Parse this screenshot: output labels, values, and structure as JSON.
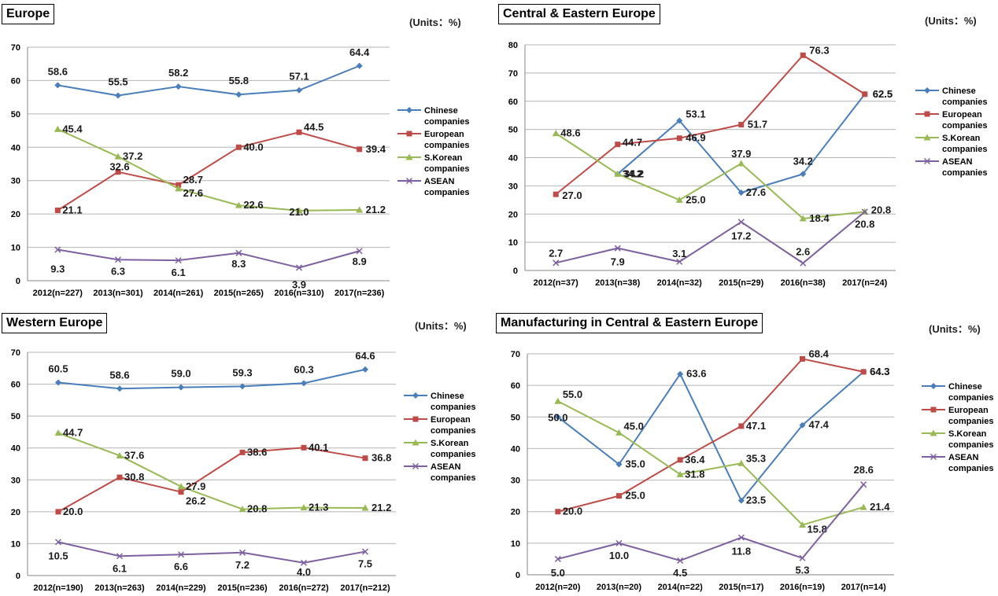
{
  "units_label": "(Units：%)",
  "colors": {
    "chinese": "#4a7ebb",
    "european": "#be4b48",
    "skorean": "#98b954",
    "asean": "#7d60a0",
    "grid": "#b4b4b4"
  },
  "chart_data": [
    {
      "type": "line",
      "title": "Europe",
      "units": "(Units：%)",
      "categories": [
        "2012(n=227)",
        "2013(n=301)",
        "2014(n=261)",
        "2015(n=265)",
        "2016(n=310)",
        "2017(n=236)"
      ],
      "ylim": [
        0,
        70
      ],
      "ystep": 10,
      "grid": true,
      "legend": "right",
      "series": [
        {
          "name": "Chinese companies",
          "values": [
            58.6,
            55.5,
            58.2,
            55.8,
            57.1,
            64.4
          ]
        },
        {
          "name": "European companies",
          "values": [
            21.1,
            32.6,
            28.7,
            40.0,
            44.5,
            39.4
          ]
        },
        {
          "name": "S.Korean companies",
          "values": [
            45.4,
            37.2,
            27.6,
            22.6,
            21.0,
            21.2
          ]
        },
        {
          "name": "ASEAN companies",
          "values": [
            9.3,
            6.3,
            6.1,
            8.3,
            3.9,
            8.9
          ]
        }
      ]
    },
    {
      "type": "line",
      "title": "Central & Eastern Europe",
      "units": "(Units：%)",
      "categories": [
        "2012(n=37)",
        "2013(n=38)",
        "2014(n=32)",
        "2015(n=29)",
        "2016(n=38)",
        "2017(n=24)"
      ],
      "ylim": [
        0,
        80
      ],
      "ystep": 10,
      "grid": true,
      "legend": "right",
      "series": [
        {
          "name": "Chinese companies",
          "values": [
            null,
            34.2,
            53.1,
            27.6,
            34.2,
            62.5
          ]
        },
        {
          "name": "European companies",
          "values": [
            27.0,
            44.7,
            46.9,
            51.7,
            76.3,
            62.5
          ]
        },
        {
          "name": "S.Korean companies",
          "values": [
            48.6,
            34.2,
            25.0,
            37.9,
            18.4,
            20.8
          ]
        },
        {
          "name": "ASEAN companies",
          "values": [
            2.7,
            7.9,
            3.1,
            17.2,
            2.6,
            20.8
          ]
        }
      ]
    },
    {
      "type": "line",
      "title": "Western Europe",
      "units": "(Units：%)",
      "categories": [
        "2012(n=190)",
        "2013(n=263)",
        "2014(n=229)",
        "2015(n=236)",
        "2016(n=272)",
        "2017(n=212)"
      ],
      "ylim": [
        0,
        70
      ],
      "ystep": 10,
      "grid": true,
      "legend": "right",
      "series": [
        {
          "name": "Chinese companies",
          "values": [
            60.5,
            58.6,
            59.0,
            59.3,
            60.3,
            64.6
          ]
        },
        {
          "name": "European companies",
          "values": [
            20.0,
            30.8,
            26.2,
            38.6,
            40.1,
            36.8
          ]
        },
        {
          "name": "S.Korean companies",
          "values": [
            44.7,
            37.6,
            27.9,
            20.8,
            21.3,
            21.2
          ]
        },
        {
          "name": "ASEAN companies",
          "values": [
            10.5,
            6.1,
            6.6,
            7.2,
            4.0,
            7.5
          ]
        }
      ]
    },
    {
      "type": "line",
      "title": "Manufacturing in Central & Eastern Europe",
      "units": "(Units：%)",
      "categories": [
        "2012(n=20)",
        "2013(n=20)",
        "2014(n=22)",
        "2015(n=17)",
        "2016(n=19)",
        "2017(n=14)"
      ],
      "ylim": [
        0,
        70
      ],
      "ystep": 10,
      "grid": true,
      "legend": "right",
      "series": [
        {
          "name": "Chinese companies",
          "values": [
            50.0,
            35.0,
            63.6,
            23.5,
            47.4,
            64.3
          ]
        },
        {
          "name": "European companies",
          "values": [
            20.0,
            25.0,
            36.4,
            47.1,
            68.4,
            64.3
          ]
        },
        {
          "name": "S.Korean companies",
          "values": [
            55.0,
            45.0,
            31.8,
            35.3,
            15.8,
            21.4
          ]
        },
        {
          "name": "ASEAN companies",
          "values": [
            5.0,
            10.0,
            4.5,
            11.8,
            5.3,
            28.6
          ]
        }
      ]
    }
  ]
}
